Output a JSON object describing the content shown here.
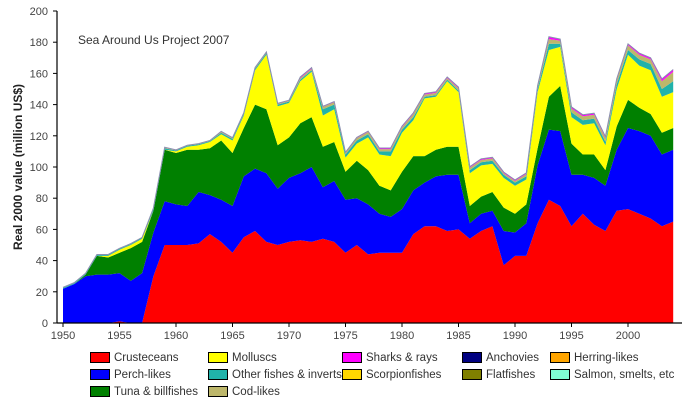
{
  "chart_data": {
    "type": "area",
    "stacked": true,
    "annotation": "Sea Around Us Project 2007",
    "xlabel": "",
    "ylabel": "Real 2000 value (million US$)",
    "xlim": [
      1950,
      2004
    ],
    "ylim": [
      0,
      200
    ],
    "x_ticks": [
      "1950",
      "1955",
      "1960",
      "1965",
      "1970",
      "1975",
      "1980",
      "1985",
      "1990",
      "1995",
      "2000"
    ],
    "y_ticks": [
      "0",
      "20",
      "40",
      "60",
      "80",
      "100",
      "120",
      "140",
      "160",
      "180",
      "200"
    ],
    "x": [
      1950,
      1951,
      1952,
      1953,
      1954,
      1955,
      1956,
      1957,
      1958,
      1959,
      1960,
      1961,
      1962,
      1963,
      1964,
      1965,
      1966,
      1967,
      1968,
      1969,
      1970,
      1971,
      1972,
      1973,
      1974,
      1975,
      1976,
      1977,
      1978,
      1979,
      1980,
      1981,
      1982,
      1983,
      1984,
      1985,
      1986,
      1987,
      1988,
      1989,
      1990,
      1991,
      1992,
      1993,
      1994,
      1995,
      1996,
      1997,
      1998,
      1999,
      2000,
      2001,
      2002,
      2003,
      2004
    ],
    "series": [
      {
        "name": "Crusteceans",
        "color": "#ff0000",
        "values": [
          0,
          0,
          0,
          0,
          0,
          1,
          0,
          0,
          30,
          50,
          50,
          50,
          51,
          57,
          52,
          45,
          55,
          59,
          52,
          50,
          52,
          53,
          52,
          54,
          52,
          45,
          50,
          44,
          45,
          45,
          45,
          57,
          62,
          62,
          59,
          60,
          54,
          59,
          62,
          37,
          43,
          43,
          64,
          79,
          75,
          62,
          70,
          63,
          59,
          72,
          73,
          70,
          67,
          62,
          65
        ]
      },
      {
        "name": "Perch-likes",
        "color": "#0000ff",
        "values": [
          22,
          25,
          30,
          31,
          31,
          31,
          27,
          32,
          28,
          28,
          26,
          25,
          33,
          25,
          27,
          30,
          39,
          40,
          44,
          36,
          41,
          43,
          48,
          33,
          39,
          34,
          30,
          32,
          25,
          23,
          28,
          28,
          28,
          32,
          36,
          35,
          10,
          11,
          10,
          22,
          15,
          21,
          37,
          45,
          48,
          33,
          25,
          30,
          29,
          39,
          52,
          53,
          53,
          46,
          46
        ]
      },
      {
        "name": "Tuna & billfishes",
        "color": "#008000",
        "values": [
          0,
          0,
          1,
          12,
          11,
          13,
          21,
          20,
          14,
          33,
          33,
          36,
          27,
          30,
          38,
          34,
          31,
          41,
          41,
          28,
          26,
          32,
          32,
          26,
          25,
          18,
          24,
          22,
          18,
          17,
          24,
          22,
          17,
          17,
          18,
          18,
          11,
          11,
          12,
          15,
          12,
          12,
          11,
          21,
          29,
          20,
          13,
          15,
          10,
          15,
          18,
          15,
          14,
          14,
          14
        ]
      },
      {
        "name": "Molluscs",
        "color": "#ffff00",
        "values": [
          0,
          0,
          0,
          0,
          1,
          2,
          2,
          2,
          0,
          0,
          1,
          2,
          3,
          4,
          4,
          8,
          8,
          22,
          35,
          25,
          22,
          27,
          29,
          20,
          21,
          9,
          11,
          21,
          20,
          22,
          25,
          23,
          37,
          34,
          42,
          35,
          21,
          20,
          18,
          19,
          18,
          16,
          36,
          30,
          25,
          17,
          19,
          20,
          16,
          24,
          29,
          27,
          28,
          23,
          23
        ]
      },
      {
        "name": "Other fishes & inverts",
        "color": "#20b2aa",
        "values": [
          0.6,
          0.6,
          0.6,
          0.6,
          0.6,
          0.6,
          0.6,
          0.6,
          1,
          1,
          0.6,
          0.6,
          0.6,
          0.6,
          1,
          1,
          1,
          1,
          1,
          1,
          1,
          1,
          1,
          4,
          3,
          2,
          2,
          2,
          2,
          3,
          2,
          2,
          1,
          1,
          1,
          1,
          2,
          2,
          2,
          2,
          2,
          2,
          2,
          4,
          2,
          3,
          3,
          3,
          2,
          3,
          3,
          4,
          4,
          5,
          7
        ]
      },
      {
        "name": "Cod-likes",
        "color": "#bdb76b",
        "values": [
          0.2,
          0.2,
          0.2,
          0.2,
          0.2,
          0.2,
          0.2,
          0.2,
          0.5,
          0.5,
          0.2,
          0.2,
          0.2,
          0.2,
          0.5,
          0.5,
          0.5,
          0.5,
          0.5,
          0.5,
          0.5,
          1,
          1,
          1.5,
          1.5,
          1,
          1.5,
          1.5,
          1.5,
          1.5,
          1.5,
          2,
          1.5,
          1.5,
          1,
          1.5,
          1.5,
          1.5,
          1.5,
          1,
          1,
          1.5,
          1.5,
          3,
          2,
          2.5,
          2.5,
          2.5,
          2.5,
          2.5,
          3,
          3,
          3,
          5,
          6
        ]
      },
      {
        "name": "Sharks & rays",
        "color": "#ff00ff",
        "values": [
          0.1,
          0.1,
          0.1,
          0.1,
          0.1,
          0.1,
          0.1,
          0.1,
          0.2,
          0.2,
          0.2,
          0.2,
          0.2,
          0.2,
          0.3,
          0.3,
          0.3,
          0.3,
          0.3,
          0.3,
          0.3,
          0.7,
          0.7,
          0.4,
          0.4,
          0.4,
          0.5,
          0.5,
          0.7,
          0.7,
          0.7,
          0.7,
          0.7,
          0.7,
          0.7,
          0.7,
          0.7,
          0.7,
          0.7,
          0.7,
          0.7,
          0.7,
          0.7,
          1.5,
          1,
          1,
          1,
          1,
          1,
          1,
          1,
          1,
          1,
          1.5,
          1.5
        ]
      },
      {
        "name": "Scorpionfishes",
        "color": "#ffd700",
        "values": [
          0,
          0,
          0,
          0,
          0,
          0,
          0,
          0,
          0,
          0,
          0,
          0,
          0,
          0,
          0,
          0,
          0,
          0,
          0,
          0,
          0,
          0,
          0,
          0,
          0,
          0,
          0,
          0,
          0,
          0,
          0,
          0,
          0,
          0,
          0,
          0,
          0,
          0,
          0,
          0,
          0,
          0,
          0,
          0,
          0,
          0,
          0,
          0,
          0,
          0,
          0,
          0,
          0,
          0,
          0
        ]
      },
      {
        "name": "Anchovies",
        "color": "#000080",
        "values": [
          0,
          0,
          0,
          0,
          0,
          0,
          0,
          0,
          0,
          0,
          0,
          0,
          0,
          0,
          0,
          0,
          0,
          0,
          0,
          0,
          0,
          0,
          0,
          0,
          0,
          0,
          0,
          0,
          0,
          0,
          0,
          0,
          0,
          0,
          0,
          0,
          0,
          0,
          0,
          0,
          0,
          0,
          0,
          0,
          0,
          0,
          0,
          0,
          0,
          0,
          0,
          0,
          0,
          0,
          0
        ]
      },
      {
        "name": "Flatfishes",
        "color": "#808000",
        "values": [
          0,
          0,
          0,
          0,
          0,
          0,
          0,
          0,
          0,
          0,
          0,
          0,
          0,
          0,
          0,
          0,
          0,
          0,
          0,
          0,
          0,
          0,
          0,
          0,
          0,
          0,
          0,
          0,
          0,
          0,
          0,
          0,
          0,
          0,
          0,
          0,
          0,
          0,
          0,
          0,
          0,
          0,
          0,
          0,
          0,
          0,
          0,
          0,
          0,
          0,
          0,
          0,
          0,
          0,
          0
        ]
      },
      {
        "name": "Herring-likes",
        "color": "#ffa500",
        "values": [
          0,
          0,
          0,
          0,
          0,
          0,
          0,
          0,
          0,
          0,
          0,
          0,
          0,
          0,
          0,
          0,
          0,
          0,
          0,
          0,
          0,
          0,
          0,
          0,
          0,
          0,
          0,
          0,
          0,
          0,
          0,
          0,
          0,
          0,
          0,
          0,
          0,
          0,
          0,
          0,
          0,
          0,
          0,
          0,
          0,
          0,
          0,
          0,
          0,
          0,
          0,
          0,
          0,
          0,
          0
        ]
      },
      {
        "name": "Salmon, smelts, etc",
        "color": "#7fffd4",
        "values": [
          0,
          0,
          0,
          0,
          0,
          0,
          0,
          0,
          0,
          0,
          0,
          0,
          0,
          0,
          0,
          0,
          0,
          0,
          0,
          0,
          0,
          0,
          0,
          0,
          0,
          0,
          0,
          0,
          0,
          0,
          0,
          0,
          0,
          0,
          0,
          0,
          0,
          0,
          0,
          0,
          0,
          0,
          0,
          0,
          0,
          0,
          0,
          0,
          0,
          0,
          0,
          0,
          0,
          0,
          0
        ]
      }
    ],
    "legend": {
      "placement": "bottom",
      "items": [
        {
          "label": "Crusteceans",
          "color": "#ff0000"
        },
        {
          "label": "Molluscs",
          "color": "#ffff00"
        },
        {
          "label": "Sharks & rays",
          "color": "#ff00ff"
        },
        {
          "label": "Anchovies",
          "color": "#000080"
        },
        {
          "label": "Herring-likes",
          "color": "#ffa500"
        },
        {
          "label": "Perch-likes",
          "color": "#0000ff"
        },
        {
          "label": "Other fishes & inverts",
          "color": "#20b2aa"
        },
        {
          "label": "Scorpionfishes",
          "color": "#ffd700"
        },
        {
          "label": "Flatfishes",
          "color": "#808000"
        },
        {
          "label": "Salmon, smelts, etc",
          "color": "#7fffd4"
        },
        {
          "label": "Tuna & billfishes",
          "color": "#008000"
        },
        {
          "label": "Cod-likes",
          "color": "#bdb76b"
        }
      ]
    },
    "grid": false
  }
}
